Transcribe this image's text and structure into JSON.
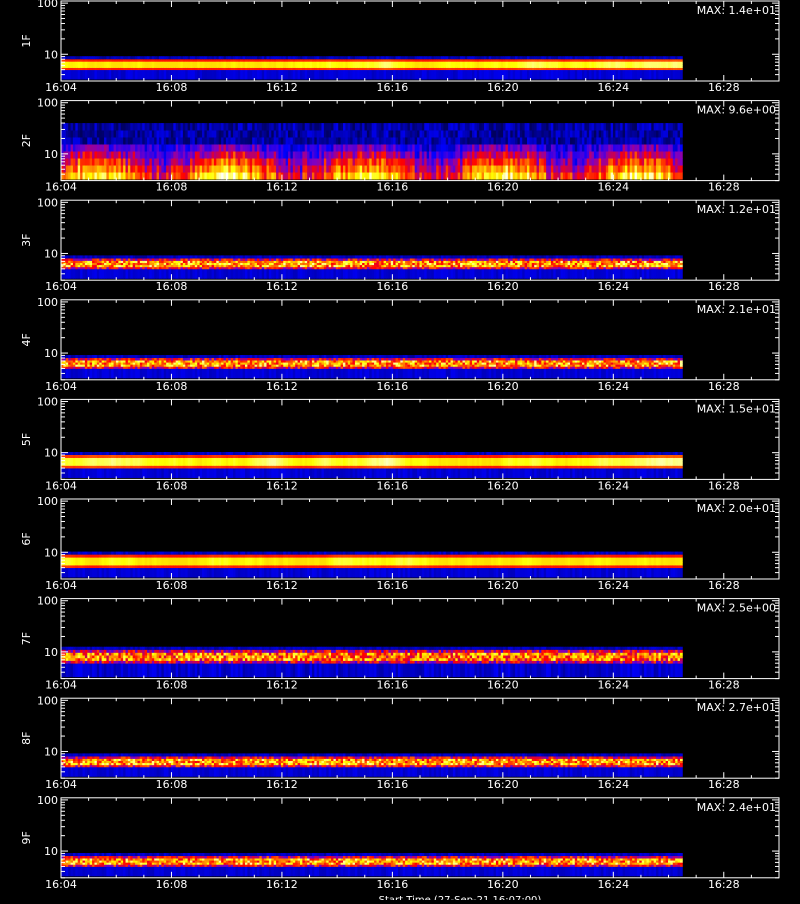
{
  "chart_data": {
    "type": "heatmap",
    "title": "",
    "colors": {
      "background": "#000000",
      "axes": "#ffffff",
      "text": "#ffffff",
      "colormap": [
        "#000000",
        "#00006e",
        "#0000ff",
        "#8000c0",
        "#ff0000",
        "#ff8000",
        "#ffff00",
        "#ffffff"
      ]
    },
    "x_axis": {
      "tick_labels": [
        "16:04",
        "16:08",
        "16:12",
        "16:16",
        "16:20",
        "16:24",
        "16:28"
      ],
      "range": [
        "16:04",
        "16:30"
      ],
      "data_end": "16:26:30",
      "title": "Start Time (27-Sep-21 16:07:00)"
    },
    "y_axis": {
      "scale": "log",
      "tick_labels": [
        "100",
        "10"
      ],
      "range": [
        3,
        110
      ]
    },
    "panels": [
      {
        "label": "1F",
        "max": "MAX: 1.4e+01",
        "band": [
          5,
          8
        ],
        "pattern": "steady_bright",
        "seed": 11
      },
      {
        "label": "2F",
        "max": "MAX: 9.6e+00",
        "band": [
          4,
          20
        ],
        "pattern": "bursty_broad",
        "seed": 22
      },
      {
        "label": "3F",
        "max": "MAX: 1.2e+01",
        "band": [
          5,
          8
        ],
        "pattern": "striped",
        "seed": 33
      },
      {
        "label": "4F",
        "max": "MAX: 2.1e+01",
        "band": [
          5,
          8
        ],
        "pattern": "striped",
        "seed": 44
      },
      {
        "label": "5F",
        "max": "MAX: 1.5e+01",
        "band": [
          5,
          9
        ],
        "pattern": "steady_bright",
        "seed": 55
      },
      {
        "label": "6F",
        "max": "MAX: 2.0e+01",
        "band": [
          5,
          9
        ],
        "pattern": "steady_bright",
        "seed": 66
      },
      {
        "label": "7F",
        "max": "MAX: 2.5e+00",
        "band": [
          6,
          11
        ],
        "pattern": "noisy_high",
        "seed": 77
      },
      {
        "label": "8F",
        "max": "MAX: 2.7e+01",
        "band": [
          5,
          8
        ],
        "pattern": "striped",
        "seed": 88
      },
      {
        "label": "9F",
        "max": "MAX: 2.4e+01",
        "band": [
          5,
          8
        ],
        "pattern": "striped",
        "seed": 99
      }
    ]
  }
}
